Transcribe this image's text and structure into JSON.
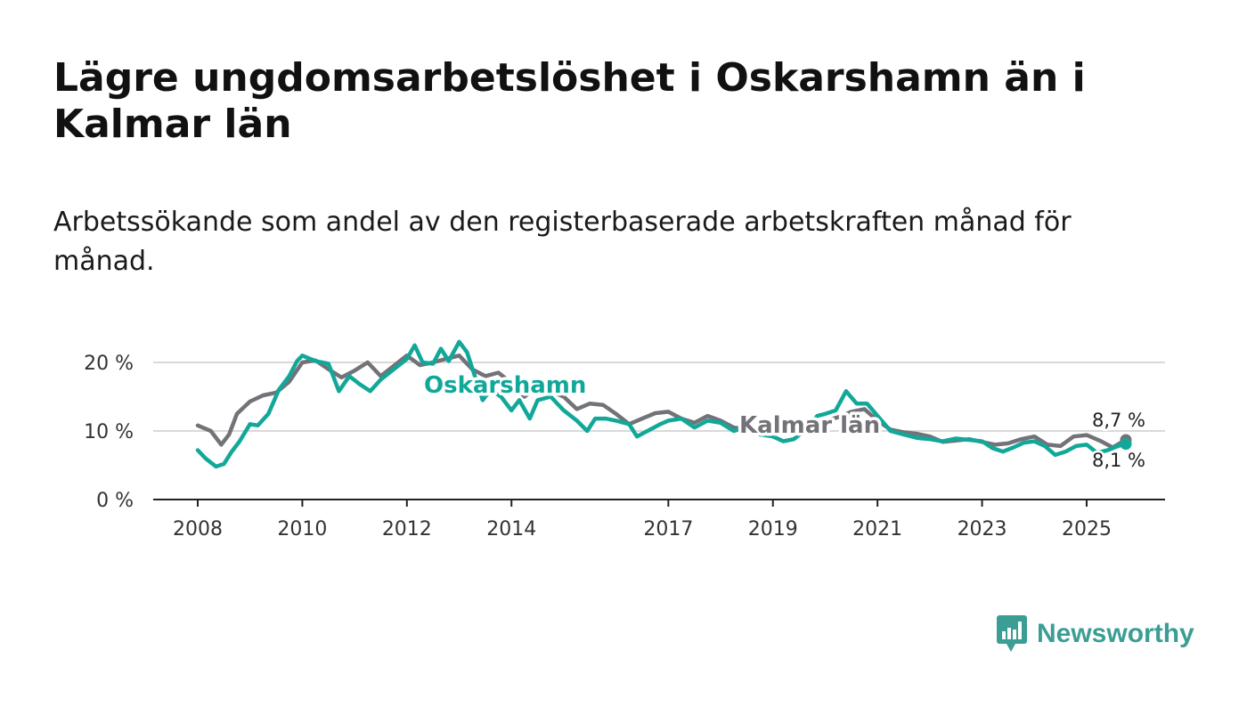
{
  "header": {
    "title": "Lägre ungdomsarbetslöshet i Oskarshamn än i Kalmar län",
    "subtitle": "Arbetssökande som andel av den registerbaserade arbetskraften månad för månad."
  },
  "brand": {
    "name": "Newsworthy",
    "color": "#3a9e94",
    "logo_icon": "bar-chart-speech-bubble-icon"
  },
  "colors": {
    "oskarshamn": "#12a899",
    "kalmar": "#737278",
    "grid": "#d9d9d9",
    "axis": "#222222",
    "text": "#333333"
  },
  "chart_data": {
    "type": "line",
    "title": "Lägre ungdomsarbetslöshet i Oskarshamn än i Kalmar län",
    "subtitle": "Arbetssökande som andel av den registerbaserade arbetskraften månad för månad.",
    "xlabel": "",
    "ylabel": "",
    "xlim": [
      2008,
      2026.6
    ],
    "ylim": [
      0,
      20
    ],
    "grid": true,
    "x_ticks": [
      {
        "value": 2008,
        "label": "2008"
      },
      {
        "value": 2010,
        "label": "2010"
      },
      {
        "value": 2012,
        "label": "2012"
      },
      {
        "value": 2014,
        "label": "2014"
      },
      {
        "value": 2017,
        "label": "2017"
      },
      {
        "value": 2019,
        "label": "2019"
      },
      {
        "value": 2021,
        "label": "2021"
      },
      {
        "value": 2023,
        "label": "2023"
      },
      {
        "value": 2025,
        "label": "2025"
      }
    ],
    "y_ticks": [
      {
        "value": 0,
        "label": "0 %"
      },
      {
        "value": 10,
        "label": "10 %"
      },
      {
        "value": 20,
        "label": "20 %"
      }
    ],
    "series": [
      {
        "name": "Kalmar län",
        "label": "Kalmar län",
        "color": "#737278",
        "end_label": "8,7 %",
        "points": [
          [
            2008.0,
            10.8
          ],
          [
            2008.25,
            10.0
          ],
          [
            2008.45,
            8.0
          ],
          [
            2008.6,
            9.5
          ],
          [
            2008.75,
            12.5
          ],
          [
            2009.0,
            14.3
          ],
          [
            2009.25,
            15.2
          ],
          [
            2009.5,
            15.6
          ],
          [
            2009.75,
            17.2
          ],
          [
            2010.0,
            20.0
          ],
          [
            2010.25,
            20.3
          ],
          [
            2010.5,
            19.0
          ],
          [
            2010.75,
            17.8
          ],
          [
            2011.0,
            18.8
          ],
          [
            2011.25,
            20.0
          ],
          [
            2011.5,
            18.0
          ],
          [
            2011.75,
            19.5
          ],
          [
            2012.0,
            21.0
          ],
          [
            2012.25,
            19.6
          ],
          [
            2012.5,
            20.0
          ],
          [
            2012.75,
            20.5
          ],
          [
            2013.0,
            21.0
          ],
          [
            2013.25,
            19.0
          ],
          [
            2013.5,
            18.0
          ],
          [
            2013.75,
            18.5
          ],
          [
            2014.0,
            17.0
          ],
          [
            2014.25,
            15.0
          ],
          [
            2014.5,
            16.5
          ],
          [
            2014.75,
            15.8
          ],
          [
            2015.0,
            15.0
          ],
          [
            2015.25,
            13.2
          ],
          [
            2015.5,
            14.0
          ],
          [
            2015.75,
            13.8
          ],
          [
            2016.0,
            12.5
          ],
          [
            2016.25,
            11.0
          ],
          [
            2016.5,
            11.8
          ],
          [
            2016.75,
            12.6
          ],
          [
            2017.0,
            12.8
          ],
          [
            2017.25,
            11.8
          ],
          [
            2017.5,
            11.2
          ],
          [
            2017.75,
            12.2
          ],
          [
            2018.0,
            11.5
          ],
          [
            2018.25,
            10.5
          ],
          [
            2018.5,
            10.2
          ],
          [
            2018.75,
            9.8
          ],
          [
            2019.0,
            10.2
          ],
          [
            2019.25,
            9.8
          ],
          [
            2019.5,
            10.3
          ],
          [
            2019.75,
            10.8
          ],
          [
            2020.0,
            11.5
          ],
          [
            2020.25,
            12.0
          ],
          [
            2020.5,
            12.8
          ],
          [
            2020.75,
            13.2
          ],
          [
            2021.0,
            11.5
          ],
          [
            2021.25,
            10.2
          ],
          [
            2021.5,
            9.8
          ],
          [
            2021.75,
            9.6
          ],
          [
            2022.0,
            9.2
          ],
          [
            2022.25,
            8.4
          ],
          [
            2022.5,
            8.6
          ],
          [
            2022.75,
            8.8
          ],
          [
            2023.0,
            8.4
          ],
          [
            2023.25,
            8.0
          ],
          [
            2023.5,
            8.2
          ],
          [
            2023.75,
            8.8
          ],
          [
            2024.0,
            9.2
          ],
          [
            2024.25,
            8.0
          ],
          [
            2024.5,
            7.8
          ],
          [
            2024.75,
            9.2
          ],
          [
            2025.0,
            9.4
          ],
          [
            2025.25,
            8.6
          ],
          [
            2025.5,
            7.6
          ],
          [
            2025.75,
            8.7
          ]
        ]
      },
      {
        "name": "Oskarshamn",
        "label": "Oskarshamn",
        "color": "#12a899",
        "end_label": "8,1 %",
        "points": [
          [
            2008.0,
            7.2
          ],
          [
            2008.15,
            6.0
          ],
          [
            2008.35,
            4.8
          ],
          [
            2008.5,
            5.2
          ],
          [
            2008.65,
            7.0
          ],
          [
            2008.8,
            8.5
          ],
          [
            2009.0,
            11.0
          ],
          [
            2009.15,
            10.8
          ],
          [
            2009.35,
            12.5
          ],
          [
            2009.55,
            16.0
          ],
          [
            2009.75,
            18.0
          ],
          [
            2009.9,
            20.2
          ],
          [
            2010.0,
            21.0
          ],
          [
            2010.25,
            20.2
          ],
          [
            2010.5,
            19.8
          ],
          [
            2010.7,
            15.8
          ],
          [
            2010.9,
            18.0
          ],
          [
            2011.1,
            16.8
          ],
          [
            2011.3,
            15.8
          ],
          [
            2011.5,
            17.5
          ],
          [
            2011.75,
            19.0
          ],
          [
            2012.0,
            20.5
          ],
          [
            2012.15,
            22.5
          ],
          [
            2012.3,
            20.0
          ],
          [
            2012.5,
            19.8
          ],
          [
            2012.65,
            22.0
          ],
          [
            2012.8,
            20.2
          ],
          [
            2013.0,
            23.0
          ],
          [
            2013.15,
            21.5
          ],
          [
            2013.3,
            18.0
          ],
          [
            2013.45,
            14.5
          ],
          [
            2013.6,
            16.0
          ],
          [
            2013.8,
            15.0
          ],
          [
            2014.0,
            13.0
          ],
          [
            2014.15,
            14.5
          ],
          [
            2014.35,
            11.8
          ],
          [
            2014.5,
            14.5
          ],
          [
            2014.75,
            15.0
          ],
          [
            2015.0,
            13.0
          ],
          [
            2015.25,
            11.5
          ],
          [
            2015.45,
            10.0
          ],
          [
            2015.6,
            11.8
          ],
          [
            2015.8,
            11.8
          ],
          [
            2016.0,
            11.5
          ],
          [
            2016.25,
            11.0
          ],
          [
            2016.4,
            9.2
          ],
          [
            2016.6,
            10.0
          ],
          [
            2016.85,
            11.0
          ],
          [
            2017.0,
            11.5
          ],
          [
            2017.25,
            11.8
          ],
          [
            2017.5,
            10.5
          ],
          [
            2017.75,
            11.5
          ],
          [
            2018.0,
            11.2
          ],
          [
            2018.25,
            10.0
          ],
          [
            2018.5,
            10.5
          ],
          [
            2018.75,
            9.5
          ],
          [
            2019.0,
            9.2
          ],
          [
            2019.2,
            8.5
          ],
          [
            2019.4,
            8.8
          ],
          [
            2019.6,
            10.0
          ],
          [
            2019.85,
            12.2
          ],
          [
            2020.0,
            12.5
          ],
          [
            2020.2,
            13.0
          ],
          [
            2020.4,
            15.8
          ],
          [
            2020.6,
            14.0
          ],
          [
            2020.8,
            14.0
          ],
          [
            2021.0,
            12.2
          ],
          [
            2021.25,
            10.0
          ],
          [
            2021.5,
            9.5
          ],
          [
            2021.75,
            9.0
          ],
          [
            2022.0,
            8.8
          ],
          [
            2022.25,
            8.5
          ],
          [
            2022.5,
            8.9
          ],
          [
            2022.75,
            8.7
          ],
          [
            2023.0,
            8.5
          ],
          [
            2023.2,
            7.5
          ],
          [
            2023.4,
            7.0
          ],
          [
            2023.6,
            7.6
          ],
          [
            2023.8,
            8.3
          ],
          [
            2024.0,
            8.5
          ],
          [
            2024.2,
            7.8
          ],
          [
            2024.4,
            6.5
          ],
          [
            2024.6,
            7.0
          ],
          [
            2024.8,
            7.8
          ],
          [
            2025.0,
            8.0
          ],
          [
            2025.2,
            6.8
          ],
          [
            2025.4,
            7.2
          ],
          [
            2025.6,
            7.8
          ],
          [
            2025.75,
            8.1
          ]
        ]
      }
    ]
  }
}
